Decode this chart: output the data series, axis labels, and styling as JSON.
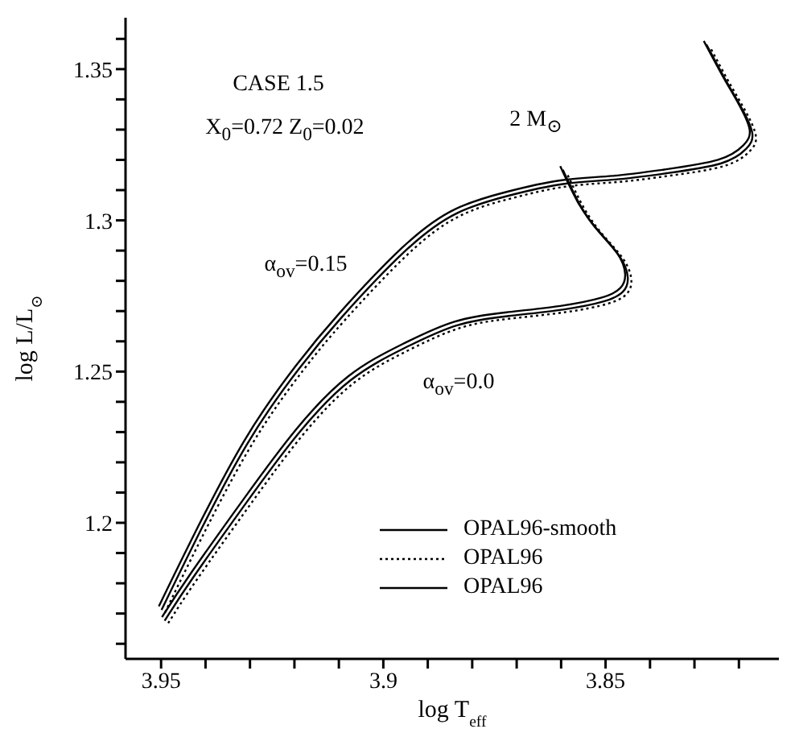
{
  "chart_data": {
    "type": "line",
    "xlabel": "log T$_{eff}$",
    "ylabel": "log L/L$_{⊙}$",
    "xlim": [
      3.958,
      3.811
    ],
    "ylim": [
      1.155,
      1.367
    ],
    "xticks": [
      {
        "value": 3.95,
        "label": "3.95"
      },
      {
        "value": 3.94,
        "label": null
      },
      {
        "value": 3.93,
        "label": null
      },
      {
        "value": 3.92,
        "label": null
      },
      {
        "value": 3.91,
        "label": null
      },
      {
        "value": 3.9,
        "label": "3.9"
      },
      {
        "value": 3.89,
        "label": null
      },
      {
        "value": 3.88,
        "label": null
      },
      {
        "value": 3.87,
        "label": null
      },
      {
        "value": 3.86,
        "label": null
      },
      {
        "value": 3.85,
        "label": "3.85"
      },
      {
        "value": 3.84,
        "label": null
      },
      {
        "value": 3.83,
        "label": null
      },
      {
        "value": 3.82,
        "label": null
      }
    ],
    "yticks": [
      {
        "value": 1.16,
        "label": null
      },
      {
        "value": 1.17,
        "label": null
      },
      {
        "value": 1.18,
        "label": null
      },
      {
        "value": 1.19,
        "label": null
      },
      1.2,
      {
        "value": 1.21,
        "label": null
      },
      {
        "value": 1.22,
        "label": null
      },
      {
        "value": 1.23,
        "label": null
      },
      {
        "value": 1.24,
        "label": null
      },
      1.25,
      {
        "value": 1.26,
        "label": null
      },
      {
        "value": 1.27,
        "label": null
      },
      {
        "value": 1.28,
        "label": null
      },
      {
        "value": 1.29,
        "label": null
      },
      {
        "value": 1.3,
        "label": "1.3"
      },
      {
        "value": 1.31,
        "label": null
      },
      {
        "value": 1.32,
        "label": null
      },
      {
        "value": 1.33,
        "label": null
      },
      {
        "value": 1.34,
        "label": null
      },
      1.35,
      {
        "value": 1.36,
        "label": null
      }
    ],
    "grid": false,
    "legend": "bottom right",
    "marker": "none",
    "annotations": [
      "CASE 1.5",
      "X$_{0}$=0.72 Z$_{0}$=0.02",
      "2 M$_{⊙}$",
      "α$_{ov}$=0.15",
      "α$_{ov}$=0.0"
    ],
    "series": [
      {
        "name": "OPAL96-smooth",
        "color": "#000000",
        "line_style": "solid",
        "x": [
          3.9492,
          3.9428,
          3.9307,
          3.919,
          3.9073,
          3.8952,
          3.8834,
          3.8717,
          3.8596,
          3.8504,
          3.8461,
          3.845,
          3.8468,
          3.8514,
          3.8557,
          3.8596
        ],
        "values": [
          1.1676,
          1.1819,
          1.2069,
          1.2297,
          1.2472,
          1.2578,
          1.2653,
          1.2684,
          1.2705,
          1.2732,
          1.2764,
          1.2811,
          1.288,
          1.296,
          1.305,
          1.3167
        ]
      },
      {
        "name": "OPAL96",
        "color": "#000000",
        "line_style": "dotted",
        "x": [
          3.9484,
          3.942,
          3.9299,
          3.9182,
          3.9065,
          3.8944,
          3.8826,
          3.8709,
          3.8588,
          3.8496,
          3.8453,
          3.8442,
          3.846,
          3.8506,
          3.8549,
          3.8588
        ],
        "values": [
          1.1668,
          1.1811,
          1.2061,
          1.2289,
          1.2464,
          1.257,
          1.2645,
          1.2676,
          1.2697,
          1.2724,
          1.2756,
          1.2803,
          1.2872,
          1.2952,
          1.3042,
          1.3159
        ]
      },
      {
        "name": "OPAL96",
        "color": "#000000",
        "line_style": "solid",
        "x": [
          3.9498,
          3.9434,
          3.9313,
          3.9196,
          3.9079,
          3.8958,
          3.884,
          3.8723,
          3.8602,
          3.851,
          3.8467,
          3.8456,
          3.8474,
          3.852,
          3.8563,
          3.8602
        ],
        "values": [
          1.1688,
          1.1831,
          1.2081,
          1.2309,
          1.2484,
          1.259,
          1.2665,
          1.2696,
          1.2717,
          1.2744,
          1.2776,
          1.2823,
          1.2892,
          1.2972,
          1.3062,
          1.3179
        ]
      },
      {
        "color": "#000000",
        "line_style": "solid",
        "x": [
          3.9499,
          3.9428,
          3.9307,
          3.919,
          3.9094,
          3.8952,
          3.8834,
          3.8717,
          3.8596,
          3.8479,
          3.8362,
          3.8241,
          3.8184,
          3.817,
          3.8195,
          3.823,
          3.8273
        ],
        "values": [
          1.1712,
          1.1925,
          1.2259,
          1.2509,
          1.2679,
          1.2897,
          1.3024,
          1.3082,
          1.312,
          1.3135,
          1.3156,
          1.3188,
          1.3236,
          1.3289,
          1.3374,
          1.3464,
          1.3581
        ]
      },
      {
        "color": "#000000",
        "line_style": "dotted",
        "x": [
          3.9491,
          3.942,
          3.9299,
          3.9182,
          3.9086,
          3.8944,
          3.8826,
          3.8709,
          3.8588,
          3.8471,
          3.8354,
          3.8233,
          3.8176,
          3.8162,
          3.8187,
          3.8222,
          3.8265
        ],
        "values": [
          1.1704,
          1.1917,
          1.2251,
          1.2501,
          1.2671,
          1.2889,
          1.3016,
          1.3074,
          1.3112,
          1.3127,
          1.3148,
          1.318,
          1.3228,
          1.3281,
          1.3366,
          1.3456,
          1.3573
        ]
      },
      {
        "color": "#000000",
        "line_style": "solid",
        "x": [
          3.9505,
          3.9434,
          3.9313,
          3.9196,
          3.91,
          3.8958,
          3.884,
          3.8723,
          3.8602,
          3.8485,
          3.8368,
          3.8247,
          3.819,
          3.8176,
          3.8201,
          3.8236,
          3.8279
        ],
        "values": [
          1.1724,
          1.1937,
          1.2271,
          1.2521,
          1.2691,
          1.2909,
          1.3036,
          1.3094,
          1.3132,
          1.3147,
          1.3168,
          1.32,
          1.3248,
          1.3301,
          1.3386,
          1.3476,
          1.3593
        ]
      }
    ]
  }
}
